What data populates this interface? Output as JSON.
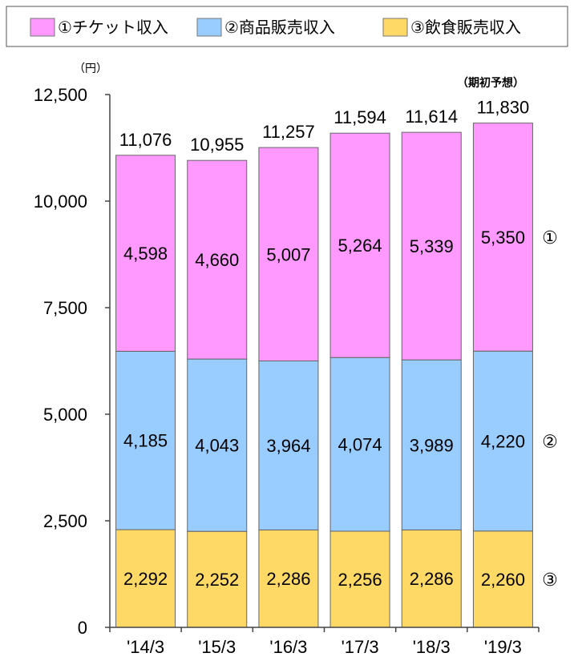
{
  "chart_data": {
    "type": "bar",
    "stacked": true,
    "unit": "（円）",
    "forecast_label": "（期初予想）",
    "categories": [
      "'14/3",
      "'15/3",
      "'16/3",
      "'17/3",
      "'18/3",
      "'19/3"
    ],
    "series": [
      {
        "name": "③飲食販売収入",
        "marker": "③",
        "color": "#FFD966",
        "values": [
          2292,
          2252,
          2286,
          2256,
          2286,
          2260
        ],
        "labels": [
          "2,292",
          "2,252",
          "2,286",
          "2,256",
          "2,286",
          "2,260"
        ]
      },
      {
        "name": "②商品販売収入",
        "marker": "②",
        "color": "#99CCFF",
        "values": [
          4185,
          4043,
          3964,
          4074,
          3989,
          4220
        ],
        "labels": [
          "4,185",
          "4,043",
          "3,964",
          "4,074",
          "3,989",
          "4,220"
        ]
      },
      {
        "name": "①チケット収入",
        "marker": "①",
        "color": "#FF99FF",
        "values": [
          4598,
          4660,
          5007,
          5264,
          5339,
          5350
        ],
        "labels": [
          "4,598",
          "4,660",
          "5,007",
          "5,264",
          "5,339",
          "5,350"
        ]
      }
    ],
    "totals": [
      11076,
      10955,
      11257,
      11594,
      11614,
      11830
    ],
    "total_labels": [
      "11,076",
      "10,955",
      "11,257",
      "11,594",
      "11,614",
      "11,830"
    ],
    "ylim": [
      0,
      12500
    ],
    "yticks": [
      0,
      2500,
      5000,
      7500,
      10000,
      12500
    ],
    "ytick_labels": [
      "0",
      "2,500",
      "5,000",
      "7,500",
      "10,000",
      "12,500"
    ],
    "legend": {
      "placement": "top",
      "items": [
        {
          "label": "①チケット収入",
          "color": "#FF99FF"
        },
        {
          "label": "②商品販売収入",
          "color": "#99CCFF"
        },
        {
          "label": "③飲食販売収入",
          "color": "#FFD966"
        }
      ]
    },
    "grid": false
  }
}
